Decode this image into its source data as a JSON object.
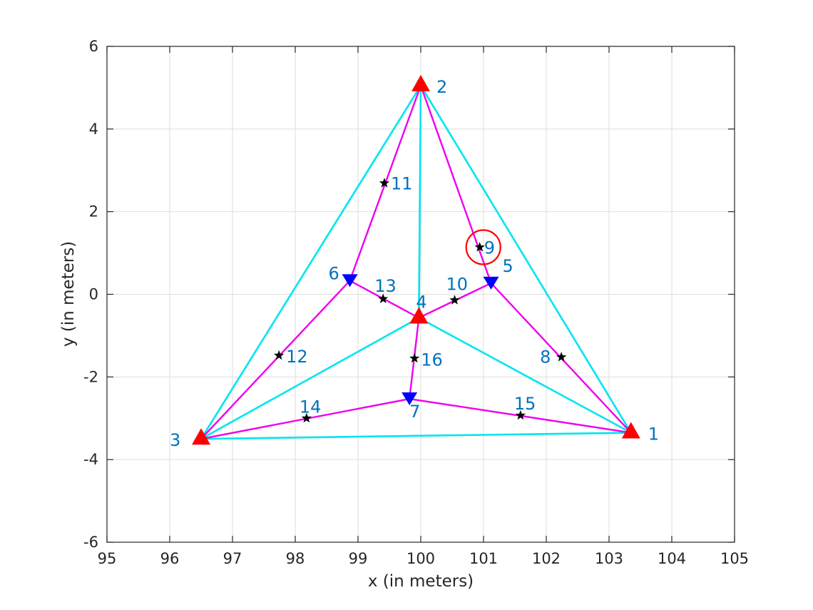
{
  "chart_data": {
    "type": "scatter",
    "title": "",
    "xlabel": "x (in meters)",
    "ylabel": "y (in meters)",
    "xlim": [
      95,
      105
    ],
    "ylim": [
      -6,
      6
    ],
    "xticks": [
      95,
      96,
      97,
      98,
      99,
      100,
      101,
      102,
      103,
      104,
      105
    ],
    "yticks": [
      -6,
      -4,
      -2,
      0,
      2,
      4,
      6
    ],
    "xtick_labels": [
      "95",
      "96",
      "97",
      "98",
      "99",
      "100",
      "101",
      "102",
      "103",
      "104",
      "105"
    ],
    "ytick_labels": [
      "-6",
      "-4",
      "-2",
      "0",
      "2",
      "4",
      "6"
    ],
    "grid": true,
    "colors": {
      "anchor": "#ff0000",
      "relay": "#0000ff",
      "target": "#000000",
      "label": "#0072bd",
      "edge_cyan": "#00e5ee",
      "edge_magenta": "#ee00ee",
      "highlight": "#ff0000",
      "grid": "#dedede",
      "axis": "#262626"
    },
    "nodes": [
      {
        "id": 1,
        "label": "1",
        "x": 103.35,
        "y": -3.35,
        "kind": "anchor"
      },
      {
        "id": 2,
        "label": "2",
        "x": 100.0,
        "y": 5.05,
        "kind": "anchor"
      },
      {
        "id": 3,
        "label": "3",
        "x": 96.5,
        "y": -3.5,
        "kind": "anchor"
      },
      {
        "id": 4,
        "label": "4",
        "x": 99.97,
        "y": -0.57,
        "kind": "anchor"
      },
      {
        "id": 5,
        "label": "5",
        "x": 101.12,
        "y": 0.27,
        "kind": "relay"
      },
      {
        "id": 6,
        "label": "6",
        "x": 98.87,
        "y": 0.33,
        "kind": "relay"
      },
      {
        "id": 7,
        "label": "7",
        "x": 99.82,
        "y": -2.53,
        "kind": "relay"
      },
      {
        "id": 8,
        "label": "8",
        "x": 102.24,
        "y": -1.52,
        "kind": "target"
      },
      {
        "id": 9,
        "label": "9",
        "x": 100.94,
        "y": 1.14,
        "kind": "target"
      },
      {
        "id": 10,
        "label": "10",
        "x": 100.54,
        "y": -0.14,
        "kind": "target"
      },
      {
        "id": 11,
        "label": "11",
        "x": 99.42,
        "y": 2.69,
        "kind": "target"
      },
      {
        "id": 12,
        "label": "12",
        "x": 97.74,
        "y": -1.48,
        "kind": "target"
      },
      {
        "id": 13,
        "label": "13",
        "x": 99.4,
        "y": -0.11,
        "kind": "target"
      },
      {
        "id": 14,
        "label": "14",
        "x": 98.18,
        "y": -3.0,
        "kind": "target"
      },
      {
        "id": 15,
        "label": "15",
        "x": 101.59,
        "y": -2.93,
        "kind": "target"
      },
      {
        "id": 16,
        "label": "16",
        "x": 99.9,
        "y": -1.55,
        "kind": "target"
      }
    ],
    "edges_cyan": [
      [
        1,
        2
      ],
      [
        2,
        3
      ],
      [
        3,
        1
      ],
      [
        2,
        4
      ],
      [
        3,
        4
      ],
      [
        1,
        4
      ]
    ],
    "edges_magenta": [
      [
        2,
        6
      ],
      [
        6,
        4
      ],
      [
        4,
        5
      ],
      [
        5,
        2
      ],
      [
        5,
        1
      ],
      [
        6,
        3
      ],
      [
        3,
        7
      ],
      [
        7,
        1
      ],
      [
        7,
        4
      ]
    ],
    "highlighted": [
      9
    ]
  }
}
